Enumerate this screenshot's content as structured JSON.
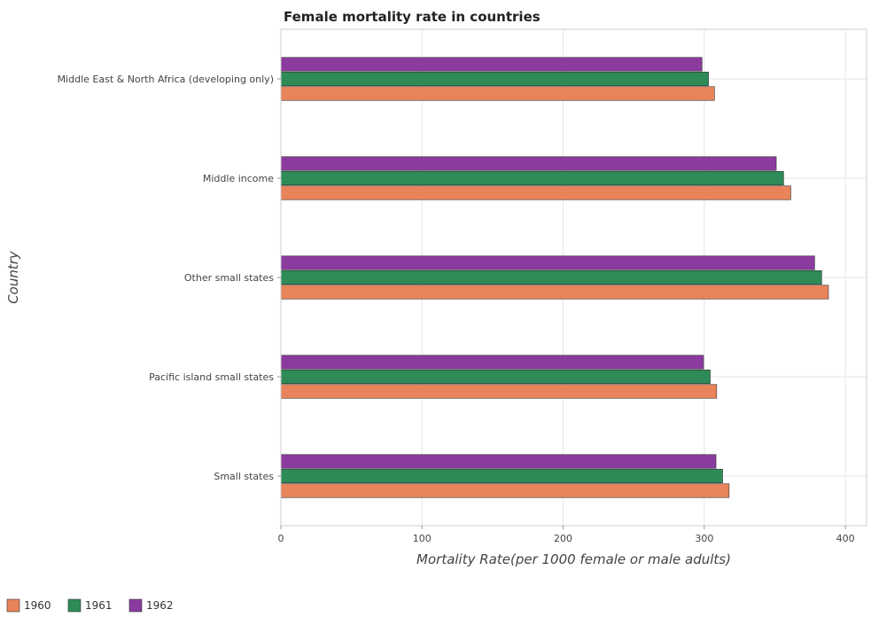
{
  "chart_data": {
    "type": "bar",
    "orientation": "horizontal",
    "title": "Female mortality rate in countries",
    "xlabel": "Mortality Rate(per 1000 female or male adults)",
    "ylabel": "Country",
    "xlim": [
      0,
      415
    ],
    "xticks": [
      0,
      100,
      200,
      300,
      400
    ],
    "grid": true,
    "legend_position": "bottom-left",
    "categories": [
      "Middle East & North Africa (developing only)",
      "Middle income",
      "Other small states",
      "Pacific island small states",
      "Small states"
    ],
    "series": [
      {
        "name": "1960",
        "color": "#e8835a",
        "values": [
          307.2,
          361.3,
          388.0,
          308.8,
          317.6
        ]
      },
      {
        "name": "1961",
        "color": "#2e8b57",
        "values": [
          303.0,
          356.2,
          383.2,
          304.2,
          313.0
        ]
      },
      {
        "name": "1962",
        "color": "#8b3a9e",
        "values": [
          298.4,
          351.0,
          378.2,
          299.5,
          308.3
        ]
      }
    ]
  }
}
